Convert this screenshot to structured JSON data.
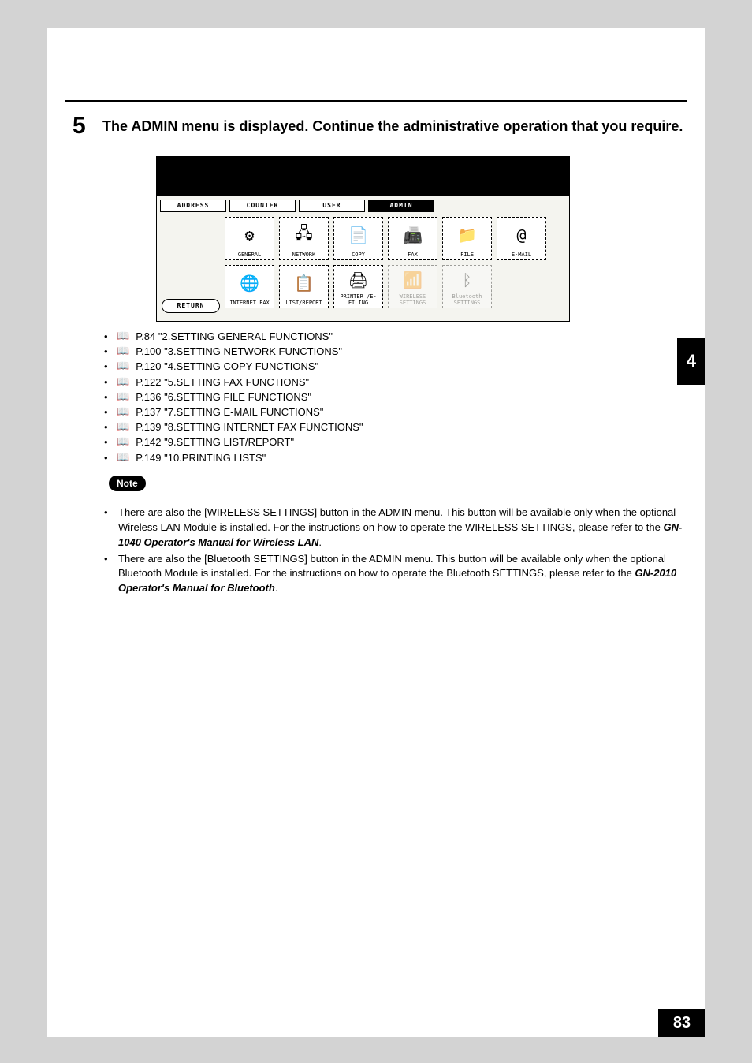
{
  "step": {
    "number": "5",
    "text": "The ADMIN menu is displayed.  Continue the administrative operation that you require."
  },
  "lcd": {
    "tabs": [
      {
        "label": "ADDRESS",
        "active": false
      },
      {
        "label": "COUNTER",
        "active": false
      },
      {
        "label": "USER",
        "active": false
      },
      {
        "label": "ADMIN",
        "active": true
      }
    ],
    "buttons_row1": [
      {
        "label": "GENERAL",
        "icon": "⚙",
        "ghost": false
      },
      {
        "label": "NETWORK",
        "icon": "🖧",
        "ghost": false
      },
      {
        "label": "COPY",
        "icon": "📄",
        "ghost": false
      },
      {
        "label": "FAX",
        "icon": "📠",
        "ghost": false
      },
      {
        "label": "FILE",
        "icon": "📁",
        "ghost": false
      },
      {
        "label": "E-MAIL",
        "icon": "@",
        "ghost": false
      }
    ],
    "buttons_row2": [
      {
        "label": "INTERNET FAX",
        "icon": "🌐",
        "ghost": false
      },
      {
        "label": "LIST/REPORT",
        "icon": "📋",
        "ghost": false
      },
      {
        "label": "PRINTER /E-FILING",
        "icon": "🖨",
        "ghost": false
      },
      {
        "label": "WIRELESS SETTINGS",
        "icon": "📶",
        "ghost": true
      },
      {
        "label": "Bluetooth SETTINGS",
        "icon": "ᛒ",
        "ghost": true
      }
    ],
    "return_label": "RETURN"
  },
  "refs": [
    "P.84 \"2.SETTING GENERAL FUNCTIONS\"",
    "P.100 \"3.SETTING NETWORK FUNCTIONS\"",
    "P.120 \"4.SETTING COPY FUNCTIONS\"",
    "P.122 \"5.SETTING FAX FUNCTIONS\"",
    "P.136 \"6.SETTING FILE FUNCTIONS\"",
    "P.137 \"7.SETTING E-MAIL FUNCTIONS\"",
    "P.139 \"8.SETTING INTERNET FAX FUNCTIONS\"",
    "P.142 \"9.SETTING LIST/REPORT\"",
    "P.149 \"10.PRINTING LISTS\""
  ],
  "note_label": "Note",
  "notes": [
    {
      "pre": "There are also the [WIRELESS SETTINGS] button in the ADMIN menu.  This button will be available only when the optional Wireless LAN Module is installed.  For the instructions on how to operate the WIRELESS SETTINGS, please refer to the ",
      "bold": "GN-1040 Operator's Manual for Wireless LAN",
      "post": "."
    },
    {
      "pre": "There are also the [Bluetooth SETTINGS] button in the ADMIN menu.  This button will be available only when the optional Bluetooth Module is installed.  For the instructions on how to operate the Bluetooth SETTINGS, please refer to the ",
      "bold": "GN-2010 Operator's Manual for Bluetooth",
      "post": "."
    }
  ],
  "chapter": "4",
  "page_number": "83",
  "bullet_char": "•",
  "book_char": "📖"
}
